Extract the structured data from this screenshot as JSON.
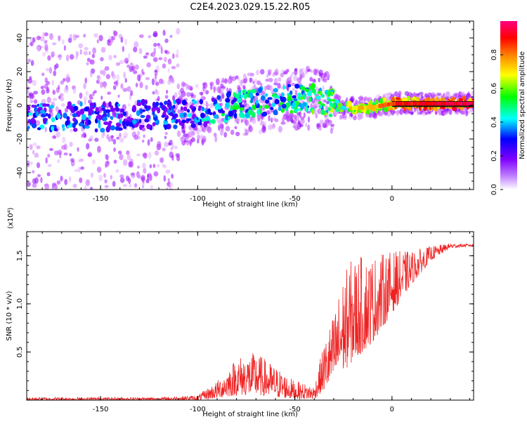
{
  "figure": {
    "title": "C2E4.2023.029.15.22.R05"
  },
  "chart_data": [
    {
      "type": "heatmap",
      "xlabel": "Height of straight line (km)",
      "ylabel": "Frequency (Hz)",
      "xlim": [
        -188,
        42
      ],
      "ylim": [
        -50,
        50
      ],
      "xticks": [
        -150,
        -100,
        -50,
        0
      ],
      "yticks": [
        -40,
        -20,
        0,
        20,
        40
      ],
      "colorbar": {
        "label": "Normalized spectral amplitude",
        "range": [
          0,
          1
        ],
        "ticks": [
          "0.0",
          "0.2",
          "0.4",
          "0.6",
          "0.8"
        ],
        "colors": [
          "#ffffff",
          "#a000ff",
          "#0000ff",
          "#00ffff",
          "#00ff00",
          "#ffff00",
          "#ff8000",
          "#ff0000",
          "#ff0080"
        ]
      },
      "ridge": [
        {
          "x": -180,
          "y": -7,
          "amp": 0.35
        },
        {
          "x": -150,
          "y": -7,
          "amp": 0.3
        },
        {
          "x": -120,
          "y": -5,
          "amp": 0.3
        },
        {
          "x": -100,
          "y": -5,
          "amp": 0.35
        },
        {
          "x": -80,
          "y": 0,
          "amp": 0.45
        },
        {
          "x": -60,
          "y": 3,
          "amp": 0.45
        },
        {
          "x": -45,
          "y": 5,
          "amp": 0.5
        },
        {
          "x": -35,
          "y": 3,
          "amp": 0.55
        },
        {
          "x": -25,
          "y": -2,
          "amp": 0.6
        },
        {
          "x": -10,
          "y": -1,
          "amp": 0.65
        },
        {
          "x": 0,
          "y": 1,
          "amp": 0.8
        },
        {
          "x": 40,
          "y": 1,
          "amp": 0.9
        }
      ]
    },
    {
      "type": "line",
      "xlabel": "Height of straight line (km)",
      "ylabel": "SNR (10 * v/v)",
      "scale_label": "(x10⁴)",
      "xlim": [
        -188,
        42
      ],
      "ylim": [
        0,
        1.75
      ],
      "xticks": [
        -150,
        -100,
        -50,
        0
      ],
      "yticks": [
        0.5,
        1.0,
        1.5
      ],
      "color": "#ee2222",
      "envelope": [
        {
          "x": -188,
          "lo": 0.0,
          "hi": 0.03
        },
        {
          "x": -120,
          "lo": 0.0,
          "hi": 0.03
        },
        {
          "x": -100,
          "lo": 0.0,
          "hi": 0.05
        },
        {
          "x": -90,
          "lo": 0.02,
          "hi": 0.2
        },
        {
          "x": -80,
          "lo": 0.05,
          "hi": 0.45
        },
        {
          "x": -70,
          "lo": 0.05,
          "hi": 0.5
        },
        {
          "x": -60,
          "lo": 0.03,
          "hi": 0.35
        },
        {
          "x": -50,
          "lo": 0.01,
          "hi": 0.2
        },
        {
          "x": -40,
          "lo": 0.01,
          "hi": 0.15
        },
        {
          "x": -35,
          "lo": 0.1,
          "hi": 0.6
        },
        {
          "x": -30,
          "lo": 0.2,
          "hi": 0.9
        },
        {
          "x": -25,
          "lo": 0.3,
          "hi": 1.3
        },
        {
          "x": -20,
          "lo": 0.4,
          "hi": 1.5
        },
        {
          "x": -10,
          "lo": 0.6,
          "hi": 1.5
        },
        {
          "x": 0,
          "lo": 0.9,
          "hi": 1.55
        },
        {
          "x": 10,
          "lo": 1.2,
          "hi": 1.55
        },
        {
          "x": 20,
          "lo": 1.45,
          "hi": 1.6
        },
        {
          "x": 30,
          "lo": 1.58,
          "hi": 1.63
        },
        {
          "x": 42,
          "lo": 1.6,
          "hi": 1.62
        }
      ]
    }
  ]
}
